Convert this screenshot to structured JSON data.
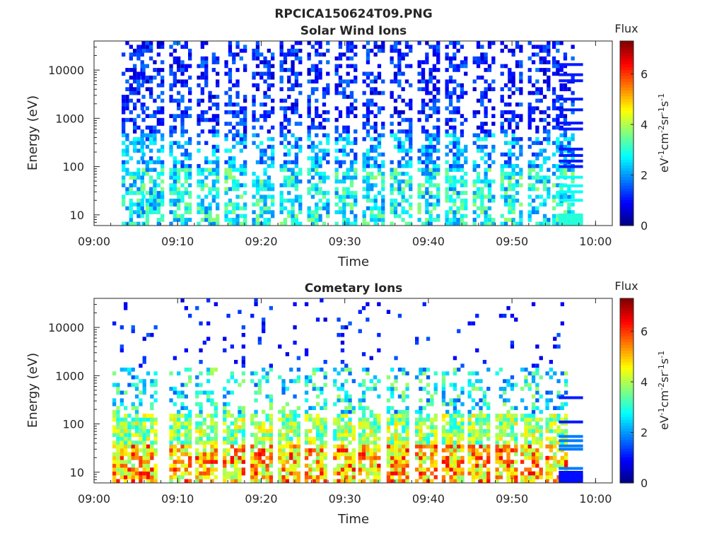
{
  "figure": {
    "filename": "RPCICA150624T09.PNG"
  },
  "chart_data": [
    {
      "type": "heatmap",
      "title": "Solar Wind Ions",
      "xlabel": "Time",
      "ylabel": "Energy (eV)",
      "x_ticks": [
        "09:00",
        "09:10",
        "09:20",
        "09:30",
        "09:40",
        "09:50",
        "10:00"
      ],
      "xlim": [
        "09:00",
        "10:02"
      ],
      "y_scale": "log",
      "y_ticks": [
        10,
        100,
        1000,
        10000
      ],
      "y_tick_labels": [
        "10",
        "100",
        "1000",
        "10000"
      ],
      "ylim": [
        6,
        40000
      ],
      "colorbar": {
        "title": "Flux",
        "label": "eV-1cm-2sr-1s-1",
        "range": [
          0,
          7.3
        ],
        "ticks": [
          0,
          2,
          4,
          6
        ],
        "tick_labels": [
          "0",
          "2",
          "4",
          "6"
        ],
        "colormap": "jet"
      },
      "scan_start_minutes": [
        3.3,
        5.7,
        9.0,
        12.3,
        15.6,
        18.9,
        22.2,
        25.5,
        28.8,
        32.1,
        35.4,
        38.7,
        42.0,
        45.3,
        48.6,
        51.9,
        54.8
      ],
      "stepped_block": {
        "start_minute": 55.6,
        "end_minute": 58.5
      },
      "low_energy_peak_flux": 3.5,
      "high_energy_flux": 1.2
    },
    {
      "type": "heatmap",
      "title": "Cometary Ions",
      "xlabel": "Time",
      "ylabel": "Energy (eV)",
      "x_ticks": [
        "09:00",
        "09:10",
        "09:20",
        "09:30",
        "09:40",
        "09:50",
        "10:00"
      ],
      "xlim": [
        "09:00",
        "10:02"
      ],
      "y_scale": "log",
      "y_ticks": [
        10,
        100,
        1000,
        10000
      ],
      "y_tick_labels": [
        "10",
        "100",
        "1000",
        "10000"
      ],
      "ylim": [
        6,
        40000
      ],
      "colorbar": {
        "title": "Flux",
        "label": "eV-1cm-2sr-1s-1",
        "range": [
          0,
          7.3
        ],
        "ticks": [
          0,
          2,
          4,
          6
        ],
        "tick_labels": [
          "0",
          "2",
          "4",
          "6"
        ],
        "colormap": "jet"
      },
      "scan_start_minutes": [
        2.2,
        4.9,
        9.0,
        12.1,
        15.4,
        18.7,
        22.0,
        25.2,
        28.6,
        31.6,
        35.0,
        38.4,
        41.6,
        44.7,
        48.0,
        51.0,
        54.0
      ],
      "stepped_block": {
        "start_minute": 55.6,
        "end_minute": 58.5
      },
      "low_energy_peak_flux": 6.5,
      "high_energy_flux": 1.0
    }
  ]
}
